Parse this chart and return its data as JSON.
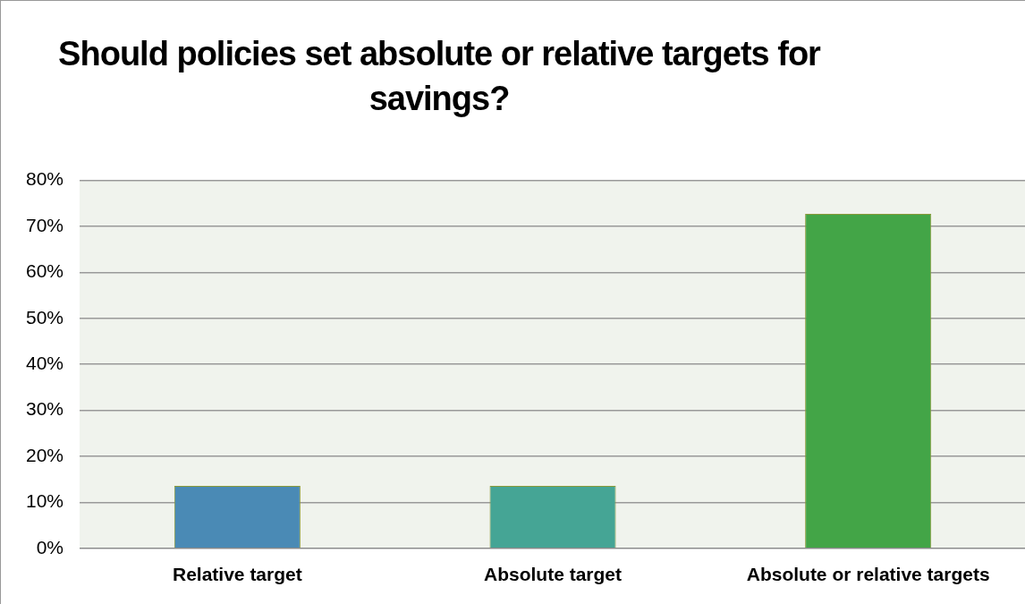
{
  "chart_data": {
    "type": "bar",
    "title": "Should policies set absolute or relative targets for savings?",
    "categories": [
      "Relative target",
      "Absolute target",
      "Absolute or relative targets"
    ],
    "values": [
      13.6,
      13.6,
      72.7
    ],
    "colors": [
      "#4a8ab5",
      "#45a595",
      "#43a547"
    ],
    "ylim": [
      0,
      80
    ],
    "yticks": [
      {
        "value": 0,
        "label": "0%"
      },
      {
        "value": 10,
        "label": "10%"
      },
      {
        "value": 20,
        "label": "20%"
      },
      {
        "value": 30,
        "label": "30%"
      },
      {
        "value": 40,
        "label": "40%"
      },
      {
        "value": 50,
        "label": "50%"
      },
      {
        "value": 60,
        "label": "60%"
      },
      {
        "value": 70,
        "label": "70%"
      },
      {
        "value": 80,
        "label": "80%"
      }
    ],
    "grid": "y",
    "legend": false
  }
}
